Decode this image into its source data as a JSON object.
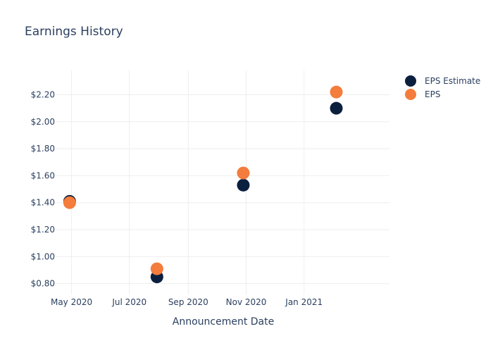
{
  "chart_data": {
    "type": "scatter",
    "title": "Earnings History",
    "xlabel": "Announcement Date",
    "ylabel": "",
    "x_ticks": [
      {
        "date": "2020-05-01",
        "label": "May 2020"
      },
      {
        "date": "2020-07-01",
        "label": "Jul 2020"
      },
      {
        "date": "2020-09-01",
        "label": "Sep 2020"
      },
      {
        "date": "2020-11-01",
        "label": "Nov 2020"
      },
      {
        "date": "2021-01-01",
        "label": "Jan 2021"
      }
    ],
    "xlim": [
      "2020-04-15",
      "2021-04-01"
    ],
    "y_ticks": [
      {
        "value": 0.8,
        "label": "$0.80"
      },
      {
        "value": 1.0,
        "label": "$1.00"
      },
      {
        "value": 1.2,
        "label": "$1.20"
      },
      {
        "value": 1.4,
        "label": "$1.40"
      },
      {
        "value": 1.6,
        "label": "$1.60"
      },
      {
        "value": 1.8,
        "label": "$1.80"
      },
      {
        "value": 2.0,
        "label": "$2.00"
      },
      {
        "value": 2.2,
        "label": "$2.20"
      }
    ],
    "ylim": [
      0.72,
      2.38
    ],
    "grid": true,
    "legend_position": "top-right",
    "series": [
      {
        "name": "EPS Estimate",
        "color": "#0b1f3f",
        "points": [
          {
            "x": "2020-04-29",
            "y": 1.41
          },
          {
            "x": "2020-07-30",
            "y": 0.85
          },
          {
            "x": "2020-10-29",
            "y": 1.53
          },
          {
            "x": "2021-02-04",
            "y": 2.1
          }
        ]
      },
      {
        "name": "EPS",
        "color": "#f47c3c",
        "points": [
          {
            "x": "2020-04-29",
            "y": 1.4
          },
          {
            "x": "2020-07-30",
            "y": 0.91
          },
          {
            "x": "2020-10-29",
            "y": 1.62
          },
          {
            "x": "2021-02-04",
            "y": 2.22
          }
        ]
      }
    ]
  }
}
